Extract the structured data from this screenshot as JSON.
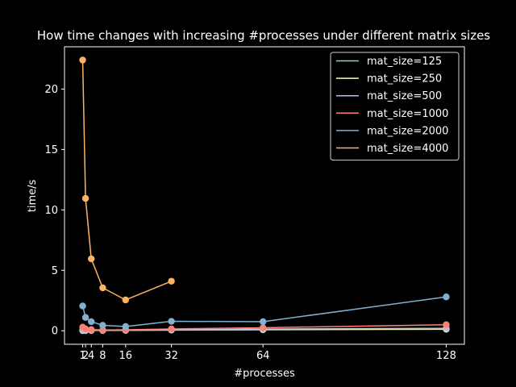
{
  "chart_data": {
    "type": "line",
    "title": "How time changes with increasing #processes under different matrix sizes",
    "xlabel": "#processes",
    "ylabel": "time/s",
    "xlim": [
      -5.35,
      134.35
    ],
    "ylim": [
      -1.12,
      23.5
    ],
    "xticks": [
      1,
      2,
      4,
      8,
      16,
      32,
      64,
      128
    ],
    "xtick_labels": [
      "1",
      "2",
      "4",
      "8",
      "16",
      "32",
      "64",
      "128"
    ],
    "yticks": [
      0,
      5,
      10,
      15,
      20
    ],
    "ytick_labels": [
      "0",
      "5",
      "10",
      "15",
      "20"
    ],
    "grid": false,
    "legend_position": "top-right",
    "colors": {
      "background": "#000000",
      "foreground": "#ffffff",
      "legend_face": "#000000",
      "legend_edge": "#d0d0d0"
    },
    "series": [
      {
        "name": "mat_size=125",
        "color": "#8dd3c7",
        "x": [
          1,
          2,
          4,
          8,
          16,
          32,
          64,
          128
        ],
        "y": [
          0.01,
          0.01,
          0.02,
          0.02,
          0.03,
          0.05,
          0.08,
          0.12
        ]
      },
      {
        "name": "mat_size=250",
        "color": "#feffb3",
        "x": [
          1,
          2,
          4,
          8,
          16,
          32,
          64,
          128
        ],
        "y": [
          0.02,
          0.02,
          0.03,
          0.03,
          0.04,
          0.07,
          0.1,
          0.15
        ]
      },
      {
        "name": "mat_size=500",
        "color": "#bfbbd9",
        "x": [
          1,
          2,
          4,
          8,
          16,
          32,
          64,
          128
        ],
        "y": [
          0.05,
          0.04,
          0.04,
          0.04,
          0.05,
          0.09,
          0.14,
          0.2
        ]
      },
      {
        "name": "mat_size=1000",
        "color": "#fa8174",
        "x": [
          1,
          2,
          4,
          8,
          16,
          32,
          64,
          128
        ],
        "y": [
          0.3,
          0.15,
          0.1,
          0.06,
          0.08,
          0.15,
          0.25,
          0.5
        ]
      },
      {
        "name": "mat_size=2000",
        "color": "#81b1d2",
        "x": [
          1,
          2,
          4,
          8,
          16,
          32,
          64,
          128
        ],
        "y": [
          2.05,
          1.1,
          0.75,
          0.45,
          0.35,
          0.78,
          0.75,
          2.8
        ]
      },
      {
        "name": "mat_size=4000",
        "color": "#fdb462",
        "x": [
          1,
          2,
          4,
          8,
          16,
          32
        ],
        "y": [
          22.4,
          10.95,
          5.95,
          3.55,
          2.55,
          4.1
        ]
      }
    ]
  }
}
